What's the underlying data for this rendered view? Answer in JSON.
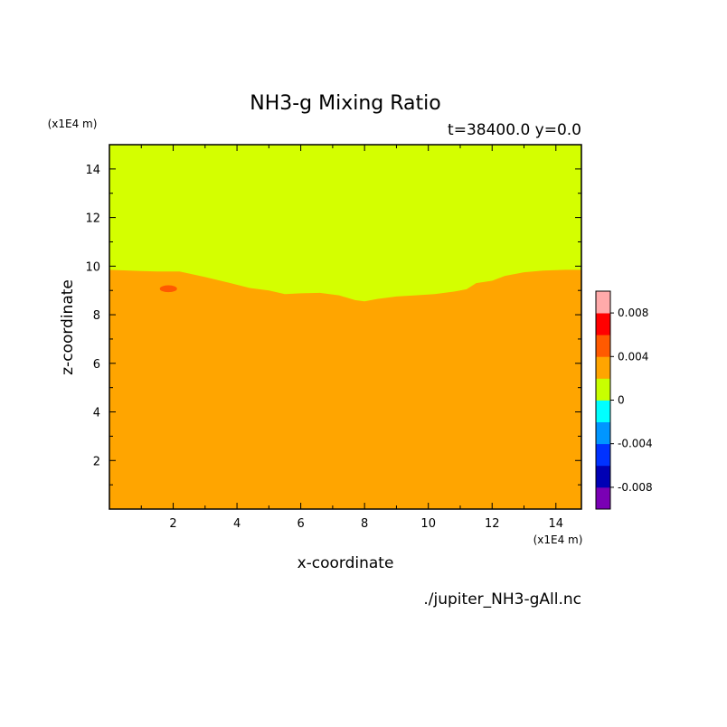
{
  "chart_data": {
    "type": "heatmap",
    "title": "NH3-g Mixing Ratio",
    "subtitle": "t=38400.0 y=0.0",
    "xlabel": "x-coordinate",
    "ylabel": "z-coordinate",
    "x_unit": "(x1E4 m)",
    "y_unit": "(x1E4 m)",
    "xlim": [
      0,
      14.8
    ],
    "ylim": [
      0,
      15
    ],
    "x_ticks": [
      2,
      4,
      6,
      8,
      10,
      12,
      14
    ],
    "y_ticks": [
      2,
      4,
      6,
      8,
      10,
      12,
      14
    ],
    "x_tick_labels": [
      "2",
      "4",
      "6",
      "8",
      "10",
      "12",
      "14"
    ],
    "y_tick_labels": [
      "2",
      "4",
      "6",
      "8",
      "10",
      "12",
      "14"
    ],
    "regions": [
      {
        "level": "0 to 0.002",
        "color": "#d4ff00",
        "description": "upper layer",
        "lower_boundary": [
          [
            0,
            9.85
          ],
          [
            1.0,
            9.8
          ],
          [
            1.5,
            9.78
          ],
          [
            2.2,
            9.78
          ],
          [
            3.0,
            9.55
          ],
          [
            3.8,
            9.3
          ],
          [
            4.4,
            9.1
          ],
          [
            5.0,
            9.0
          ],
          [
            5.5,
            8.85
          ],
          [
            6.0,
            8.88
          ],
          [
            6.6,
            8.9
          ],
          [
            7.2,
            8.8
          ],
          [
            7.7,
            8.6
          ],
          [
            8.0,
            8.55
          ],
          [
            8.4,
            8.65
          ],
          [
            9.0,
            8.75
          ],
          [
            9.6,
            8.8
          ],
          [
            10.2,
            8.85
          ],
          [
            10.8,
            8.95
          ],
          [
            11.2,
            9.05
          ],
          [
            11.5,
            9.3
          ],
          [
            12.0,
            9.4
          ],
          [
            12.4,
            9.6
          ],
          [
            13.0,
            9.75
          ],
          [
            13.6,
            9.82
          ],
          [
            14.3,
            9.85
          ],
          [
            14.8,
            9.85
          ]
        ]
      },
      {
        "level": "0.002 to 0.004",
        "color": "#ffa500",
        "description": "lower layer"
      },
      {
        "level": "0.004 to 0.006",
        "color": "#ff5a00",
        "description": "small blob",
        "center": [
          1.85,
          9.07
        ],
        "radius_x": 0.27,
        "radius_y": 0.14
      }
    ],
    "colorbar": {
      "colors": [
        "#7a00b4",
        "#0000b4",
        "#0032ff",
        "#0096ff",
        "#00ffff",
        "#c8ff00",
        "#ffa500",
        "#ff5a00",
        "#ff0000",
        "#ffaaaa"
      ],
      "tick_labels": [
        "-0.008",
        "-0.004",
        "0",
        "0.004",
        "0.008"
      ],
      "tick_values": [
        -0.008,
        -0.004,
        0,
        0.004,
        0.008
      ],
      "range": [
        -0.01,
        0.01
      ]
    },
    "source_file": "./jupiter_NH3-gAll.nc",
    "grid": false
  }
}
